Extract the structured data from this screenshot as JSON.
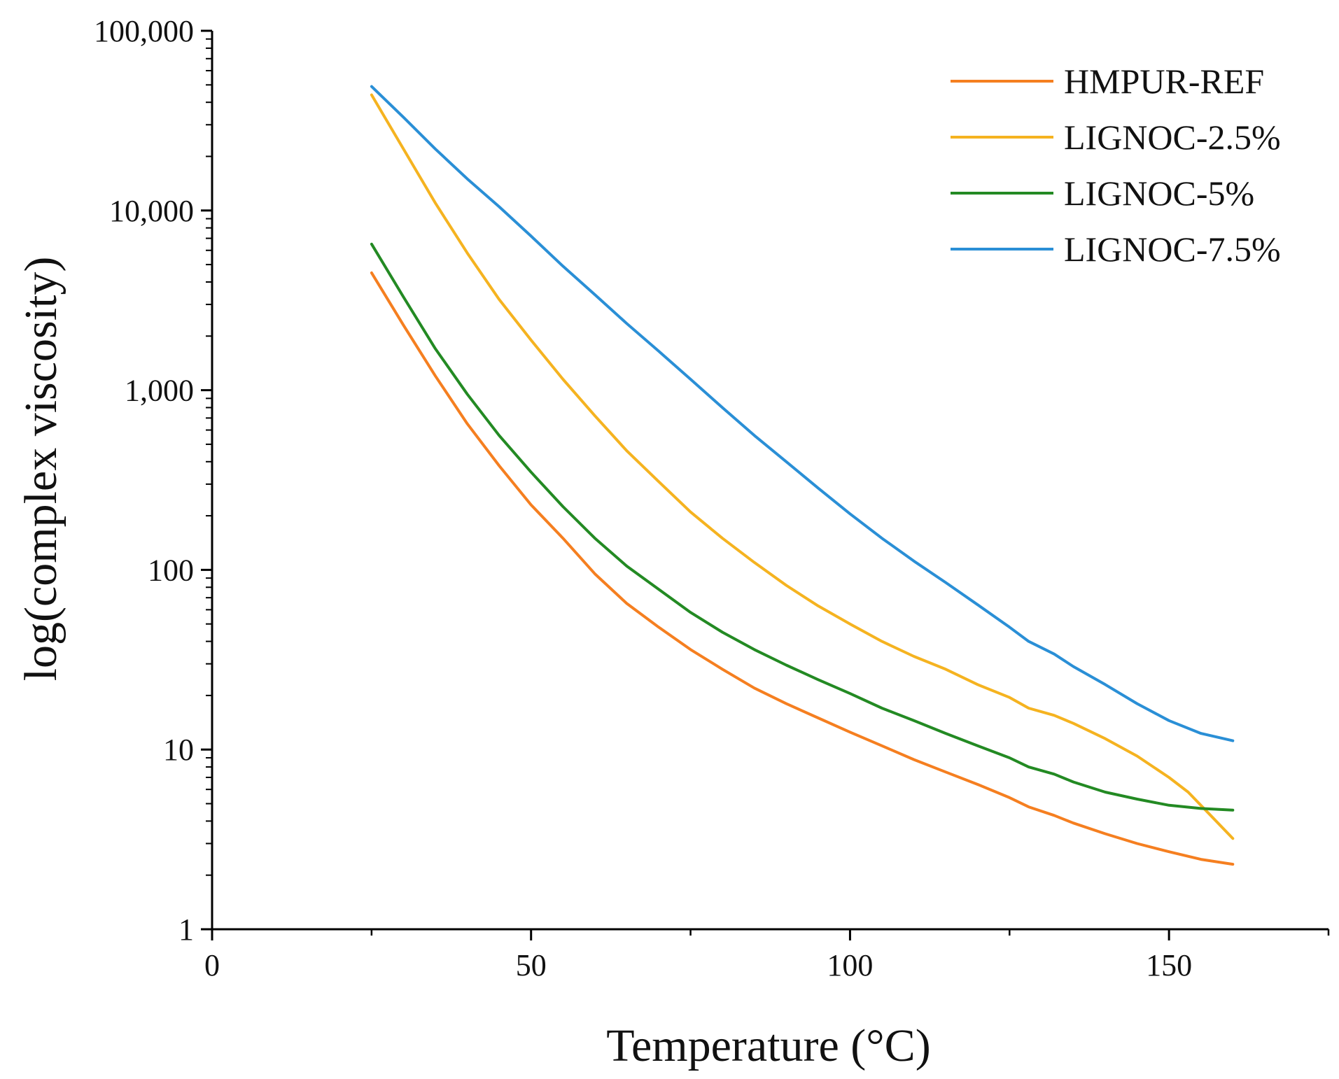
{
  "chart_data": {
    "type": "line",
    "title": "",
    "xlabel": "Temperature (°C)",
    "ylabel": "log(complex viscosity)",
    "xlim": [
      0,
      175
    ],
    "ylim": [
      1,
      100000
    ],
    "yscale": "log",
    "grid": false,
    "legend_position": "top-right",
    "x_ticks": [
      {
        "value": 0,
        "label": "0"
      },
      {
        "value": 50,
        "label": "50"
      },
      {
        "value": 100,
        "label": "100"
      },
      {
        "value": 150,
        "label": "150"
      }
    ],
    "x_minor_step": 25,
    "y_ticks": [
      {
        "value": 1,
        "label": "1"
      },
      {
        "value": 10,
        "label": "10"
      },
      {
        "value": 100,
        "label": "100"
      },
      {
        "value": 1000,
        "label": "1,000"
      },
      {
        "value": 10000,
        "label": "10,000"
      },
      {
        "value": 100000,
        "label": "100,000"
      }
    ],
    "series": [
      {
        "name": "HMPUR-REF",
        "color": "#F57F20",
        "x": [
          25,
          30,
          35,
          40,
          45,
          50,
          55,
          60,
          65,
          70,
          75,
          80,
          85,
          90,
          95,
          100,
          105,
          110,
          115,
          120,
          125,
          128,
          132,
          135,
          140,
          145,
          150,
          155,
          160
        ],
        "values": [
          4500,
          2300,
          1200,
          650,
          380,
          230,
          150,
          95,
          65,
          48,
          36,
          28,
          22,
          18,
          15,
          12.5,
          10.5,
          8.8,
          7.5,
          6.4,
          5.4,
          4.8,
          4.3,
          3.9,
          3.4,
          3.0,
          2.7,
          2.45,
          2.3
        ]
      },
      {
        "name": "LIGNOC-2.5%",
        "color": "#F5B320",
        "x": [
          25,
          30,
          35,
          40,
          45,
          50,
          55,
          60,
          65,
          70,
          75,
          80,
          85,
          90,
          95,
          100,
          105,
          110,
          115,
          120,
          125,
          128,
          132,
          135,
          140,
          145,
          150,
          153,
          156,
          160
        ],
        "values": [
          44000,
          22000,
          11000,
          5800,
          3200,
          1900,
          1150,
          720,
          460,
          310,
          210,
          150,
          110,
          82,
          63,
          50,
          40,
          33,
          28,
          23,
          19.5,
          17,
          15.5,
          14,
          11.5,
          9.2,
          7,
          5.8,
          4.5,
          3.2
        ]
      },
      {
        "name": "LIGNOC-5%",
        "color": "#238A23",
        "x": [
          25,
          30,
          35,
          40,
          45,
          50,
          55,
          60,
          65,
          70,
          75,
          80,
          85,
          90,
          95,
          100,
          105,
          110,
          115,
          120,
          125,
          128,
          132,
          135,
          140,
          145,
          150,
          155,
          160
        ],
        "values": [
          6500,
          3300,
          1700,
          950,
          560,
          350,
          225,
          150,
          105,
          78,
          58,
          45,
          36,
          29.5,
          24.5,
          20.5,
          17,
          14.5,
          12.3,
          10.5,
          9.0,
          8.0,
          7.3,
          6.6,
          5.8,
          5.3,
          4.9,
          4.7,
          4.6
        ]
      },
      {
        "name": "LIGNOC-7.5%",
        "color": "#2A8FD6",
        "x": [
          25,
          30,
          35,
          40,
          45,
          50,
          55,
          60,
          65,
          70,
          75,
          80,
          85,
          90,
          95,
          100,
          105,
          110,
          115,
          120,
          125,
          128,
          132,
          135,
          140,
          145,
          150,
          155,
          160
        ],
        "values": [
          49000,
          33000,
          22000,
          15000,
          10500,
          7200,
          4900,
          3400,
          2350,
          1650,
          1150,
          800,
          560,
          400,
          285,
          205,
          150,
          112,
          85,
          64,
          48,
          40,
          34,
          29,
          23,
          18,
          14.5,
          12.3,
          11.2
        ]
      }
    ]
  }
}
